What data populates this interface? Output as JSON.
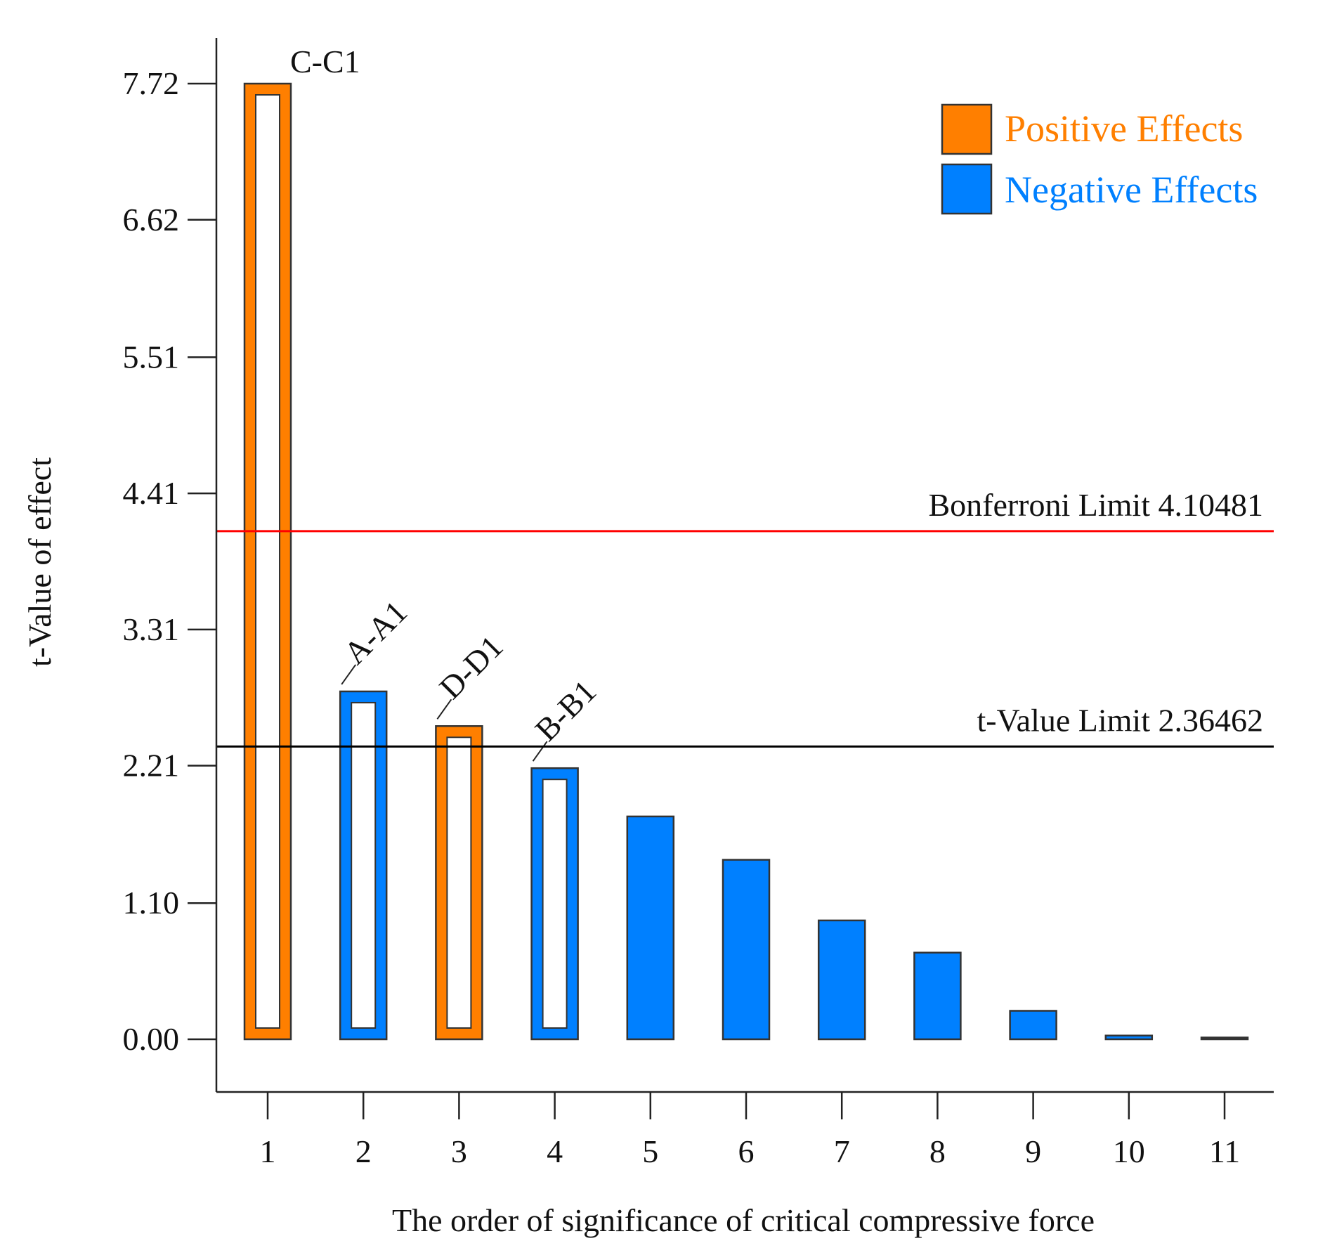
{
  "chart_data": {
    "type": "bar",
    "xlabel": "The order of significance of critical compressive force",
    "ylabel": "t-Value of effect",
    "categories": [
      "1",
      "2",
      "3",
      "4",
      "5",
      "6",
      "7",
      "8",
      "9",
      "10",
      "11"
    ],
    "values": [
      7.72,
      2.81,
      2.53,
      2.19,
      1.8,
      1.45,
      0.96,
      0.7,
      0.23,
      0.03,
      0.01
    ],
    "effect": [
      "positive",
      "negative",
      "positive",
      "negative",
      "negative",
      "negative",
      "negative",
      "negative",
      "negative",
      "negative",
      "negative"
    ],
    "hollow": [
      true,
      true,
      true,
      true,
      false,
      false,
      false,
      false,
      false,
      false,
      false
    ],
    "bar_labels": [
      "C-C1",
      "A-A1",
      "D-D1",
      "B-B1",
      "",
      "",
      "",
      "",
      "",
      "",
      ""
    ],
    "yticks": [
      "0.00",
      "1.10",
      "2.21",
      "3.31",
      "4.41",
      "5.51",
      "6.62",
      "7.72"
    ],
    "ylim": [
      -0.43,
      8.1
    ],
    "grid": false,
    "reference_lines": [
      {
        "label": "Bonferroni Limit 4.10481",
        "value": 4.10481,
        "color": "#ff0000"
      },
      {
        "label": "t-Value Limit 2.36462",
        "value": 2.36462,
        "color": "#000000"
      }
    ],
    "legend": {
      "placement": "top-right",
      "entries": [
        {
          "label": "Positive Effects",
          "color": "#ff7f00"
        },
        {
          "label": "Negative Effects",
          "color": "#0080ff"
        }
      ]
    }
  }
}
